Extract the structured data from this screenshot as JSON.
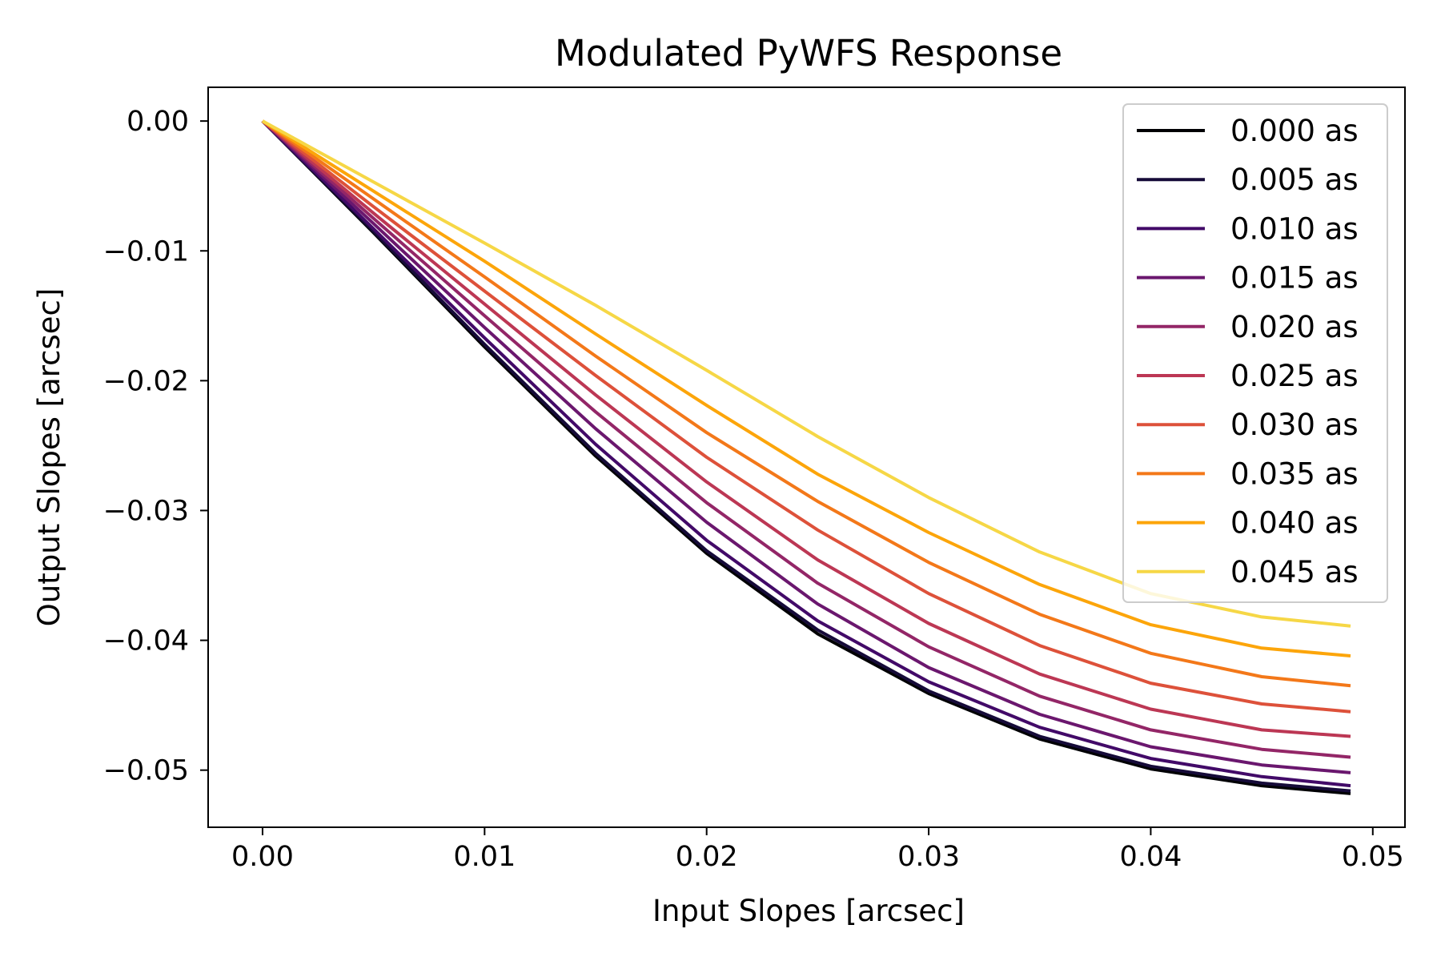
{
  "chart_data": {
    "type": "line",
    "title": "Modulated PyWFS Response",
    "xlabel": "Input Slopes [arcsec]",
    "ylabel": "Output Slopes [arcsec]",
    "xlim": [
      -0.00245,
      0.05145
    ],
    "ylim": [
      -0.0544,
      0.0026
    ],
    "xticks": [
      0.0,
      0.01,
      0.02,
      0.03,
      0.04,
      0.05
    ],
    "xtick_labels": [
      "0.00",
      "0.01",
      "0.02",
      "0.03",
      "0.04",
      "0.05"
    ],
    "yticks": [
      0.0,
      -0.01,
      -0.02,
      -0.03,
      -0.04,
      -0.05
    ],
    "ytick_labels": [
      "0.00",
      "−0.01",
      "−0.02",
      "−0.03",
      "−0.04",
      "−0.05"
    ],
    "grid": false,
    "legend_position": "top-right",
    "x": [
      0.0,
      0.005,
      0.01,
      0.015,
      0.02,
      0.025,
      0.03,
      0.035,
      0.04,
      0.045,
      0.049
    ],
    "series": [
      {
        "name": "0.000 as",
        "color": "#000004",
        "values": [
          0.0,
          -0.0086,
          -0.0174,
          -0.0258,
          -0.0333,
          -0.0395,
          -0.0441,
          -0.0476,
          -0.0499,
          -0.0512,
          -0.0518
        ]
      },
      {
        "name": "0.005 as",
        "color": "#160b39",
        "values": [
          0.0,
          -0.0085,
          -0.0172,
          -0.0256,
          -0.0331,
          -0.0392,
          -0.0439,
          -0.0474,
          -0.0497,
          -0.051,
          -0.0516
        ]
      },
      {
        "name": "0.010 as",
        "color": "#420a68",
        "values": [
          0.0,
          -0.0083,
          -0.0167,
          -0.0249,
          -0.0323,
          -0.0385,
          -0.0432,
          -0.0467,
          -0.0491,
          -0.0505,
          -0.0512
        ]
      },
      {
        "name": "0.015 as",
        "color": "#6a176e",
        "values": [
          0.0,
          -0.0079,
          -0.0159,
          -0.0237,
          -0.0309,
          -0.0372,
          -0.0421,
          -0.0457,
          -0.0482,
          -0.0496,
          -0.0502
        ]
      },
      {
        "name": "0.020 as",
        "color": "#932667",
        "values": [
          0.0,
          -0.0075,
          -0.015,
          -0.0224,
          -0.0294,
          -0.0356,
          -0.0405,
          -0.0443,
          -0.0469,
          -0.0484,
          -0.049
        ]
      },
      {
        "name": "0.025 as",
        "color": "#bc3754",
        "values": [
          0.0,
          -0.0071,
          -0.0141,
          -0.0211,
          -0.0278,
          -0.0338,
          -0.0387,
          -0.0426,
          -0.0453,
          -0.0469,
          -0.0474
        ]
      },
      {
        "name": "0.030 as",
        "color": "#dd513a",
        "values": [
          0.0,
          -0.0066,
          -0.0131,
          -0.0196,
          -0.0259,
          -0.0315,
          -0.0364,
          -0.0404,
          -0.0433,
          -0.0449,
          -0.0455
        ]
      },
      {
        "name": "0.035 as",
        "color": "#f37819",
        "values": [
          0.0,
          -0.006,
          -0.012,
          -0.0181,
          -0.024,
          -0.0293,
          -0.034,
          -0.038,
          -0.041,
          -0.0428,
          -0.0435
        ]
      },
      {
        "name": "0.040 as",
        "color": "#fca50a",
        "values": [
          0.0,
          -0.0054,
          -0.0108,
          -0.0164,
          -0.0219,
          -0.0272,
          -0.0317,
          -0.0357,
          -0.0388,
          -0.0406,
          -0.0412
        ]
      },
      {
        "name": "0.045 as",
        "color": "#f6d746",
        "values": [
          0.0,
          -0.0047,
          -0.0094,
          -0.0142,
          -0.0192,
          -0.0243,
          -0.029,
          -0.0332,
          -0.0364,
          -0.0382,
          -0.0389
        ]
      }
    ]
  }
}
